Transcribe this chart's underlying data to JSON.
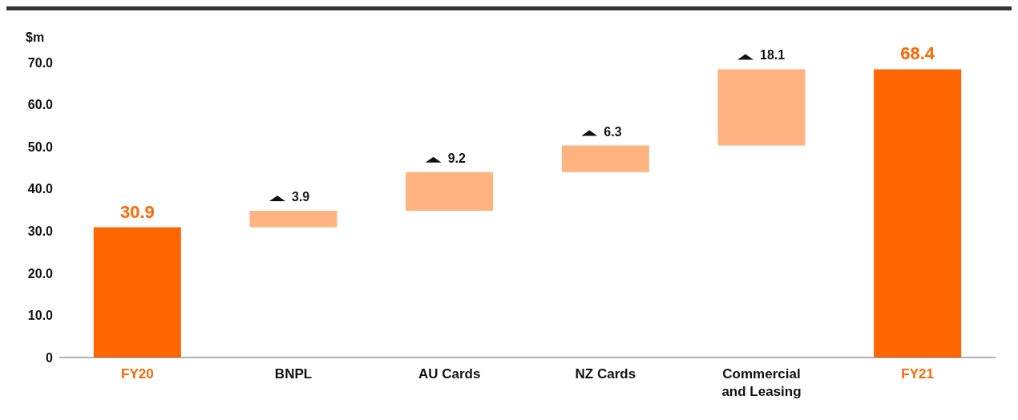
{
  "chart_data": {
    "type": "bar",
    "ylabel": "$m",
    "categories": [
      "FY20",
      "BNPL",
      "AU Cards",
      "NZ Cards",
      "Commercial and Leasing",
      "FY21"
    ],
    "values": [
      30.9,
      3.9,
      9.2,
      6.3,
      18.1,
      68.4
    ],
    "base": [
      0,
      30.9,
      34.8,
      44.0,
      50.3,
      0
    ],
    "colors": [
      "#ff6600",
      "#ffb380",
      "#ffb380",
      "#ffb380",
      "#ffb380",
      "#ff6600"
    ],
    "value_labels": [
      "30.9",
      "3.9",
      "9.2",
      "6.3",
      "18.1",
      "68.4"
    ],
    "ylim": [
      0,
      70
    ],
    "yticks": [
      0,
      {
        "value": 10,
        "label": "10.0"
      },
      {
        "value": 20,
        "label": "20.0"
      },
      {
        "value": 30,
        "label": "30.0"
      },
      {
        "value": 40,
        "label": "40.0"
      },
      {
        "value": 50,
        "label": "50.0"
      },
      {
        "value": 60,
        "label": "60.0"
      },
      {
        "value": 70,
        "label": "70.0"
      }
    ],
    "grid": false,
    "legend": false
  }
}
